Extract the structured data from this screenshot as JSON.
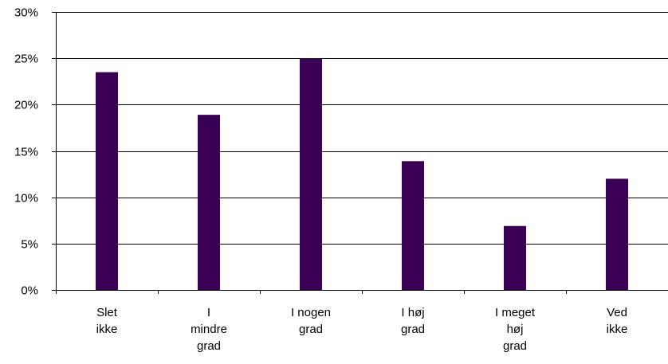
{
  "chart_data": {
    "type": "bar",
    "title": "",
    "xlabel": "",
    "ylabel": "",
    "categories": [
      [
        "Slet",
        "ikke"
      ],
      [
        "I",
        "mindre",
        "grad"
      ],
      [
        "I nogen",
        "grad"
      ],
      [
        "I høj",
        "grad"
      ],
      [
        "I meget",
        "høj",
        "grad"
      ],
      [
        "Ved",
        "ikke"
      ]
    ],
    "values": [
      23.5,
      18.9,
      25.0,
      13.9,
      6.9,
      12.0
    ],
    "ylim": [
      0,
      30
    ],
    "yticks": [
      0,
      5,
      10,
      15,
      20,
      25,
      30
    ],
    "ytick_labels": [
      "0%",
      "5%",
      "10%",
      "15%",
      "20%",
      "25%",
      "30%"
    ],
    "grid": true,
    "legend": "none",
    "bar_color": "#3a0055"
  }
}
